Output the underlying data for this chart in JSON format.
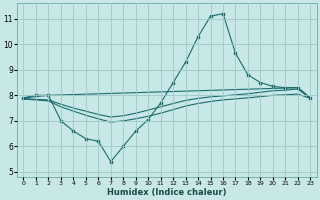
{
  "xlabel": "Humidex (Indice chaleur)",
  "background_color": "#c8e8e8",
  "grid_color": "#a0c8c8",
  "line_color": "#1a6b6b",
  "xlim": [
    -0.5,
    23.5
  ],
  "ylim": [
    4.8,
    11.6
  ],
  "yticks": [
    5,
    6,
    7,
    8,
    9,
    10,
    11
  ],
  "xticks": [
    0,
    1,
    2,
    3,
    4,
    5,
    6,
    7,
    8,
    9,
    10,
    11,
    12,
    13,
    14,
    15,
    16,
    17,
    18,
    19,
    20,
    21,
    22,
    23
  ],
  "line1_x": [
    0,
    1,
    2,
    3,
    4,
    5,
    6,
    7,
    8,
    9,
    10,
    11,
    12,
    13,
    14,
    15,
    16,
    17,
    18,
    19,
    20,
    21,
    22,
    23
  ],
  "line1_y": [
    7.9,
    8.0,
    8.0,
    7.0,
    6.6,
    6.3,
    6.2,
    5.4,
    6.0,
    6.6,
    7.05,
    7.7,
    8.5,
    9.3,
    10.3,
    11.1,
    11.2,
    9.65,
    8.8,
    8.5,
    8.35,
    8.3,
    8.3,
    7.9
  ],
  "line2_x": [
    0,
    2,
    22,
    23
  ],
  "line2_y": [
    7.9,
    8.0,
    8.3,
    7.9
  ],
  "line3_x": [
    0,
    1,
    2,
    3,
    4,
    5,
    6,
    7,
    8,
    9,
    10,
    11,
    12,
    13,
    14,
    15,
    16,
    17,
    18,
    19,
    20,
    21,
    22,
    23
  ],
  "line3_y": [
    7.85,
    7.82,
    7.78,
    7.55,
    7.38,
    7.22,
    7.08,
    6.95,
    7.0,
    7.08,
    7.18,
    7.3,
    7.44,
    7.58,
    7.68,
    7.76,
    7.82,
    7.86,
    7.9,
    7.95,
    8.0,
    8.02,
    8.05,
    7.88
  ],
  "line4_x": [
    0,
    1,
    2,
    3,
    4,
    5,
    6,
    7,
    8,
    9,
    10,
    11,
    12,
    13,
    14,
    15,
    16,
    17,
    18,
    19,
    20,
    21,
    22,
    23
  ],
  "line4_y": [
    7.88,
    7.84,
    7.82,
    7.65,
    7.5,
    7.38,
    7.25,
    7.15,
    7.2,
    7.3,
    7.42,
    7.55,
    7.68,
    7.8,
    7.88,
    7.94,
    7.98,
    8.02,
    8.06,
    8.12,
    8.18,
    8.2,
    8.25,
    7.88
  ]
}
